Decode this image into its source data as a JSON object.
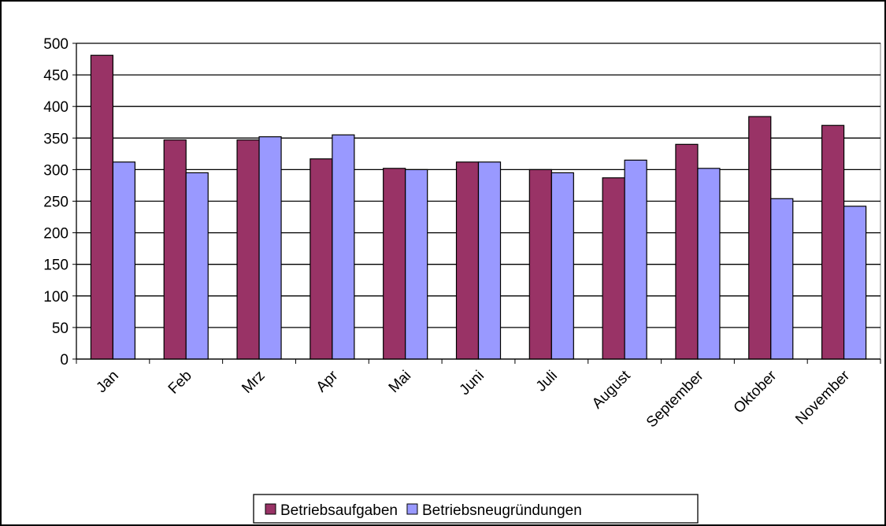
{
  "chart_data": {
    "type": "bar",
    "categories": [
      "Jan",
      "Feb",
      "Mrz",
      "Apr",
      "Mai",
      "Juni",
      "Juli",
      "August",
      "September",
      "Oktober",
      "November"
    ],
    "series": [
      {
        "name": "Betriebsaufgaben",
        "color": "#993366",
        "values": [
          481,
          347,
          347,
          317,
          302,
          312,
          300,
          287,
          340,
          384,
          370
        ]
      },
      {
        "name": "Betriebsneugründungen",
        "color": "#9999ff",
        "values": [
          312,
          295,
          352,
          355,
          300,
          312,
          295,
          315,
          302,
          254,
          242
        ]
      }
    ],
    "ylim": [
      0,
      500
    ],
    "yticks": [
      0,
      50,
      100,
      150,
      200,
      250,
      300,
      350,
      400,
      450,
      500
    ],
    "grid": true,
    "legend": "bottom"
  }
}
